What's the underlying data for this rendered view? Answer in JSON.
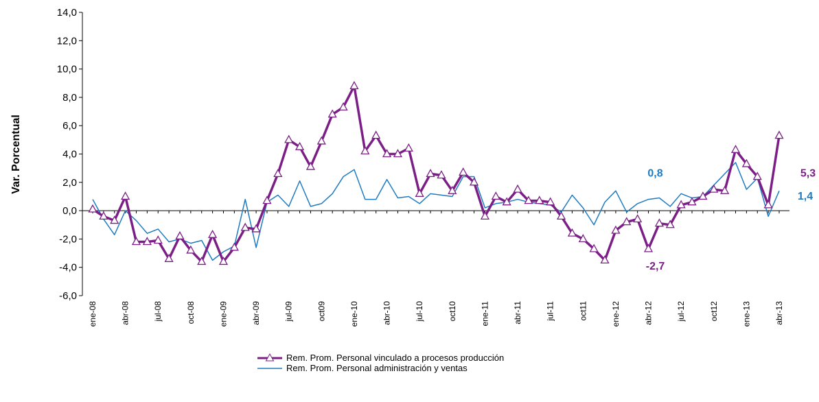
{
  "chart_data": {
    "type": "line",
    "y_label": "Var. Porcentual",
    "categories": [
      "ene-08",
      null,
      null,
      "abr-08",
      null,
      null,
      "jul-08",
      null,
      null,
      "oct-08",
      null,
      null,
      "ene-09",
      null,
      null,
      "abr-09",
      null,
      null,
      "jul-09",
      null,
      null,
      "oct09",
      null,
      null,
      "ene-10",
      null,
      null,
      "abr-10",
      null,
      null,
      "jul-10",
      null,
      null,
      "oct10",
      null,
      null,
      "ene-11",
      null,
      null,
      "abr-11",
      null,
      null,
      "jul-11",
      null,
      null,
      "oct11",
      null,
      null,
      "ene-12",
      null,
      null,
      "abr-12",
      null,
      null,
      "jul-12",
      null,
      null,
      "oct12",
      null,
      null,
      "ene-13",
      null,
      null,
      "abr-13"
    ],
    "ylim": [
      -6,
      14
    ],
    "yticks": [
      {
        "value": -6,
        "label": "-6,0"
      },
      {
        "value": -4,
        "label": "-4,0"
      },
      {
        "value": -2,
        "label": "-2,0"
      },
      {
        "value": 0,
        "label": "0,0"
      },
      {
        "value": 2,
        "label": "2,0"
      },
      {
        "value": 4,
        "label": "4,0"
      },
      {
        "value": 6,
        "label": "6,0"
      },
      {
        "value": 8,
        "label": "8,0"
      },
      {
        "value": 10,
        "label": "10,0"
      },
      {
        "value": 12,
        "label": "12,0"
      },
      {
        "value": 14,
        "label": "14,0"
      }
    ],
    "legend": "bottom",
    "series": [
      {
        "name": "Rem. Prom. Personal vinculado a procesos producción",
        "color": "#7b1f87",
        "marker": "triangle",
        "values": [
          0.1,
          -0.4,
          -0.7,
          1.0,
          -2.2,
          -2.2,
          -2.1,
          -3.4,
          -1.8,
          -2.8,
          -3.6,
          -1.7,
          -3.6,
          -2.6,
          -1.2,
          -1.3,
          0.7,
          2.6,
          5.0,
          4.5,
          3.1,
          4.9,
          6.8,
          7.3,
          8.8,
          4.2,
          5.3,
          4.0,
          4.0,
          4.4,
          1.2,
          2.6,
          2.5,
          1.4,
          2.7,
          2.0,
          -0.4,
          1.0,
          0.6,
          1.5,
          0.7,
          0.7,
          0.6,
          -0.4,
          -1.6,
          -2.0,
          -2.7,
          -3.5,
          -1.4,
          -0.8,
          -0.6,
          -2.7,
          -0.9,
          -1.0,
          0.4,
          0.6,
          1.0,
          1.5,
          1.4,
          4.3,
          3.3,
          2.4,
          0.4,
          5.3
        ],
        "value_labels": [
          null,
          null,
          null,
          null,
          null,
          null,
          null,
          null,
          null,
          null,
          null,
          null,
          null,
          null,
          null,
          null,
          null,
          null,
          null,
          null,
          null,
          null,
          null,
          null,
          null,
          null,
          null,
          null,
          null,
          null,
          null,
          null,
          null,
          null,
          null,
          null,
          null,
          null,
          null,
          null,
          null,
          null,
          null,
          null,
          null,
          null,
          null,
          null,
          null,
          null,
          null,
          "-2,7",
          null,
          null,
          null,
          null,
          null,
          null,
          null,
          null,
          null,
          null,
          null,
          "5,3"
        ]
      },
      {
        "name": "Rem. Prom. Personal administración y ventas",
        "color": "#1f7bc1",
        "values": [
          0.8,
          -0.6,
          -1.7,
          0.0,
          -0.7,
          -1.6,
          -1.3,
          -2.2,
          -2.0,
          -2.3,
          -2.1,
          -3.5,
          -2.9,
          -2.5,
          0.8,
          -2.6,
          0.6,
          1.1,
          0.3,
          2.1,
          0.3,
          0.5,
          1.2,
          2.4,
          2.9,
          0.8,
          0.8,
          2.2,
          0.9,
          1.0,
          0.5,
          1.2,
          1.1,
          1.0,
          2.4,
          2.4,
          0.2,
          0.5,
          0.6,
          0.8,
          0.6,
          0.5,
          0.4,
          -0.1,
          1.1,
          0.2,
          -1.0,
          0.6,
          1.4,
          -0.1,
          0.5,
          0.8,
          0.9,
          0.3,
          1.2,
          0.9,
          1.0,
          1.8,
          2.6,
          3.4,
          1.5,
          2.3,
          -0.4,
          1.4
        ],
        "value_labels": [
          null,
          null,
          null,
          null,
          null,
          null,
          null,
          null,
          null,
          null,
          null,
          null,
          null,
          null,
          null,
          null,
          null,
          null,
          null,
          null,
          null,
          null,
          null,
          null,
          null,
          null,
          null,
          null,
          null,
          null,
          null,
          null,
          null,
          null,
          null,
          null,
          null,
          null,
          null,
          null,
          null,
          null,
          null,
          null,
          null,
          null,
          null,
          null,
          null,
          null,
          null,
          "0,8",
          null,
          null,
          null,
          null,
          null,
          null,
          null,
          null,
          null,
          null,
          null,
          "1,4"
        ]
      }
    ]
  }
}
